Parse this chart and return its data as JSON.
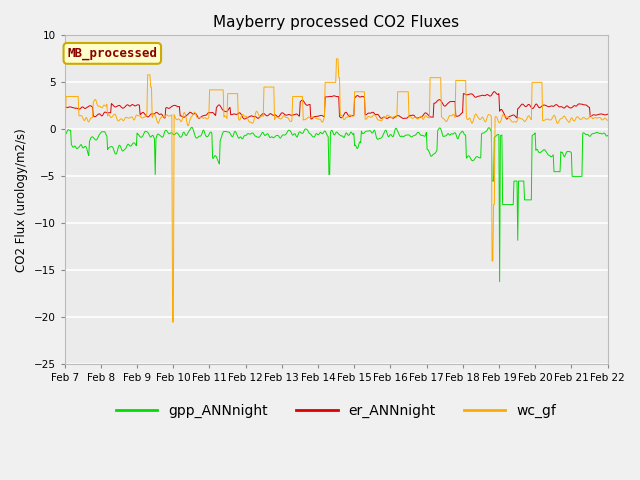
{
  "title": "Mayberry processed CO2 Fluxes",
  "ylabel": "CO2 Flux (urology/m2/s)",
  "ylim": [
    -25,
    10
  ],
  "yticks": [
    -25,
    -20,
    -15,
    -10,
    -5,
    0,
    5,
    10
  ],
  "fig_bg_color": "#f0f0f0",
  "plot_bg_color": "#ebebeb",
  "gpp_color": "#00dd00",
  "er_color": "#dd0000",
  "wc_color": "#ffaa00",
  "legend_label": "MB_processed",
  "legend_text_color": "#8b0000",
  "legend_box_facecolor": "#ffffcc",
  "legend_box_edgecolor": "#ccaa00",
  "series_labels": [
    "gpp_ANNnight",
    "er_ANNnight",
    "wc_gf"
  ],
  "n_points": 720,
  "x_tick_labels": [
    "Feb 7",
    "Feb 8",
    "Feb 9",
    "Feb 10",
    "Feb 11",
    "Feb 12",
    "Feb 13",
    "Feb 14",
    "Feb 15",
    "Feb 16",
    "Feb 17",
    "Feb 18",
    "Feb 19",
    "Feb 20",
    "Feb 21",
    "Feb 22"
  ],
  "x_tick_positions": [
    0,
    1,
    2,
    3,
    4,
    5,
    6,
    7,
    8,
    9,
    10,
    11,
    12,
    13,
    14,
    15
  ]
}
